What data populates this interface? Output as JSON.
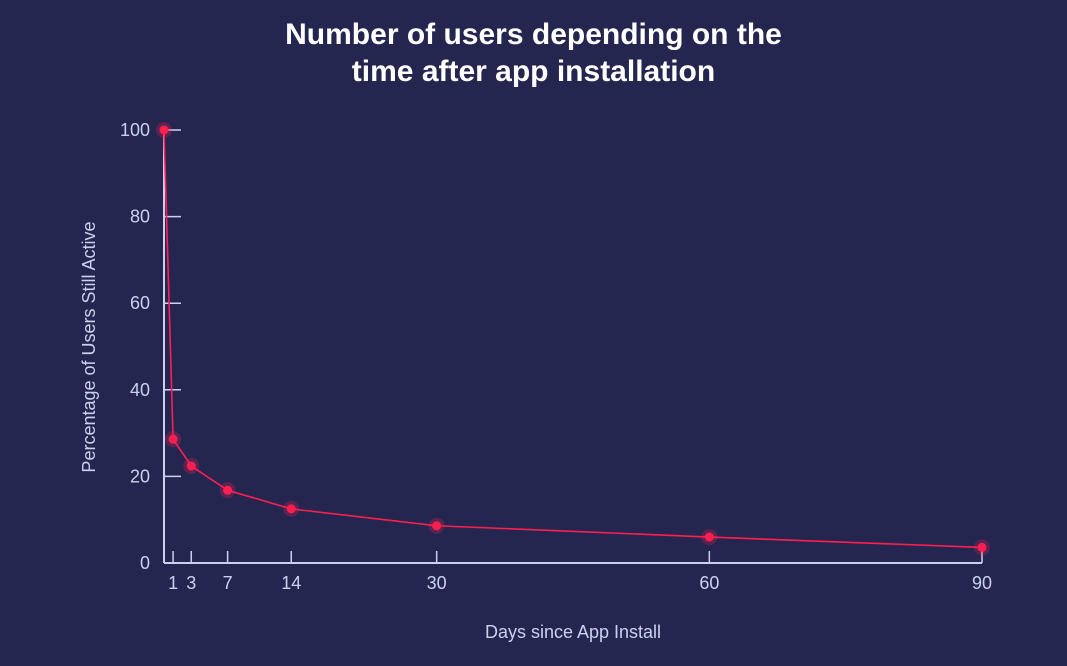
{
  "chart_data": {
    "type": "line",
    "title": "Number of users depending on the time after app installation",
    "title_lines": [
      "Number of users depending on the",
      "time after app installation"
    ],
    "xlabel": "Days since App Install",
    "ylabel": "Percentage of Users Still Active",
    "x": [
      0,
      1,
      3,
      7,
      14,
      30,
      60,
      90
    ],
    "y": [
      100,
      28.6,
      22.4,
      16.8,
      12.5,
      8.6,
      6.0,
      3.6
    ],
    "xticks": [
      1,
      3,
      7,
      14,
      30,
      60,
      90
    ],
    "yticks": [
      0,
      20,
      40,
      60,
      80,
      100
    ],
    "xlim": [
      0,
      90
    ],
    "ylim": [
      0,
      100
    ],
    "grid": false,
    "colors": {
      "background": "#252650",
      "line": "#ff1f4f",
      "axis": "#c9d1f0",
      "title": "#ffffff"
    }
  }
}
